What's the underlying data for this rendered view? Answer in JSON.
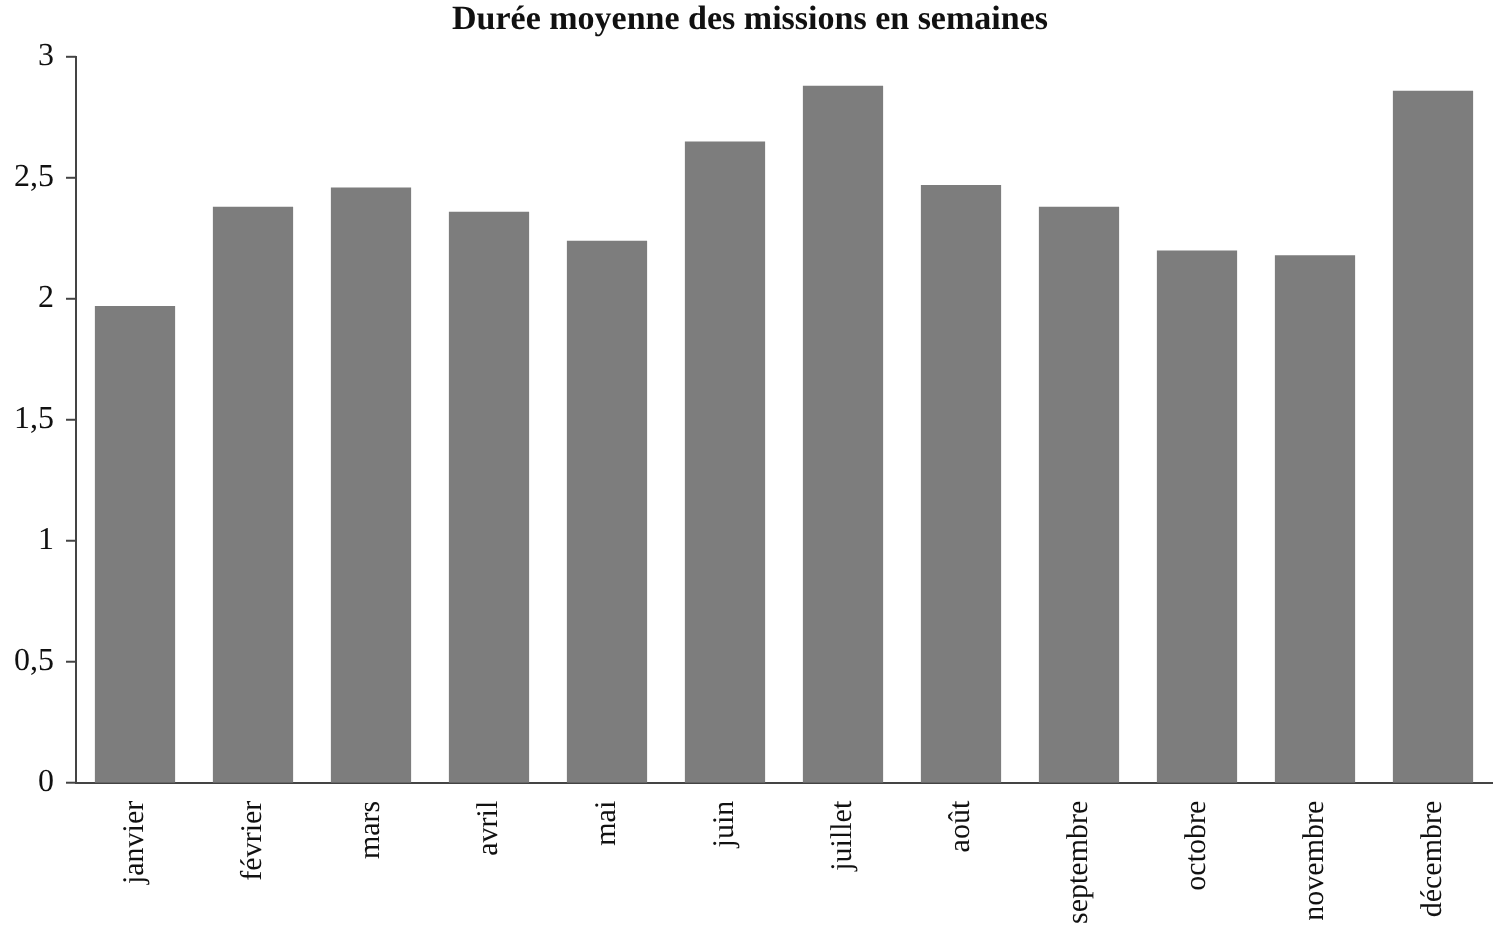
{
  "chart_data": {
    "type": "bar",
    "title": "Durée moyenne des missions en semaines",
    "categories": [
      "janvier",
      "février",
      "mars",
      "avril",
      "mai",
      "juin",
      "juillet",
      "août",
      "septembre",
      "octobre",
      "novembre",
      "décembre"
    ],
    "values": [
      1.97,
      2.38,
      2.46,
      2.36,
      2.24,
      2.65,
      2.88,
      2.47,
      2.38,
      2.2,
      2.18,
      2.86
    ],
    "color": "#7d7d7d",
    "ylim": [
      0,
      3
    ],
    "yticks": [
      0,
      {
        "value": 0.5,
        "label": "0,5"
      },
      1,
      {
        "value": 1.5,
        "label": "1,5"
      },
      2,
      {
        "value": 2.5,
        "label": "2,5"
      },
      3
    ],
    "grid": false,
    "legend": false
  }
}
